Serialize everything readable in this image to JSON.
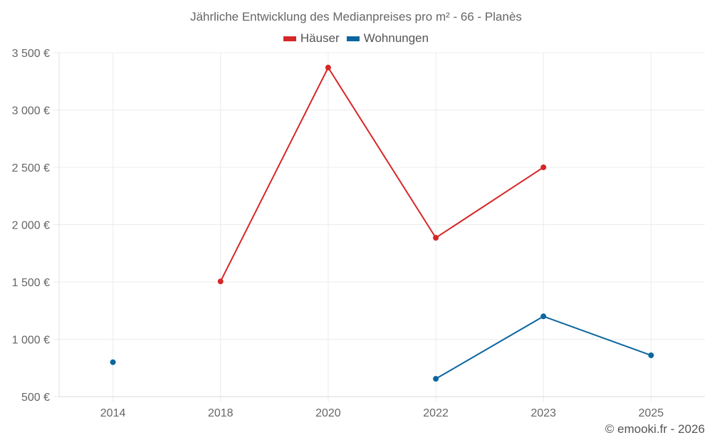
{
  "title": "Jährliche Entwicklung des Medianpreises pro m² - 66 - Planès",
  "legend": [
    {
      "label": "Häuser",
      "color": "#d62728"
    },
    {
      "label": "Wohnungen",
      "color": "#0b66a0"
    }
  ],
  "credit": "© emooki.fr - 2026",
  "chart_data": {
    "type": "line",
    "title": "Jährliche Entwicklung des Medianpreises pro m² - 66 - Planès",
    "xlabel": "",
    "ylabel": "",
    "categories": [
      "2014",
      "2018",
      "2020",
      "2022",
      "2023",
      "2025"
    ],
    "series": [
      {
        "name": "Häuser",
        "color": "#d62728",
        "values": [
          null,
          1505,
          3370,
          1885,
          2500,
          null
        ]
      },
      {
        "name": "Wohnungen",
        "color": "#0b66a0",
        "values": [
          800,
          null,
          null,
          655,
          1200,
          860
        ]
      }
    ],
    "ylim": [
      500,
      3500
    ],
    "yticks": [
      500,
      1000,
      1500,
      2000,
      2500,
      3000,
      3500
    ],
    "ytick_labels": [
      "500 €",
      "1 000 €",
      "1 500 €",
      "2 000 €",
      "2 500 €",
      "3 000 €",
      "3 500 €"
    ],
    "grid": true,
    "legend_position": "top"
  }
}
